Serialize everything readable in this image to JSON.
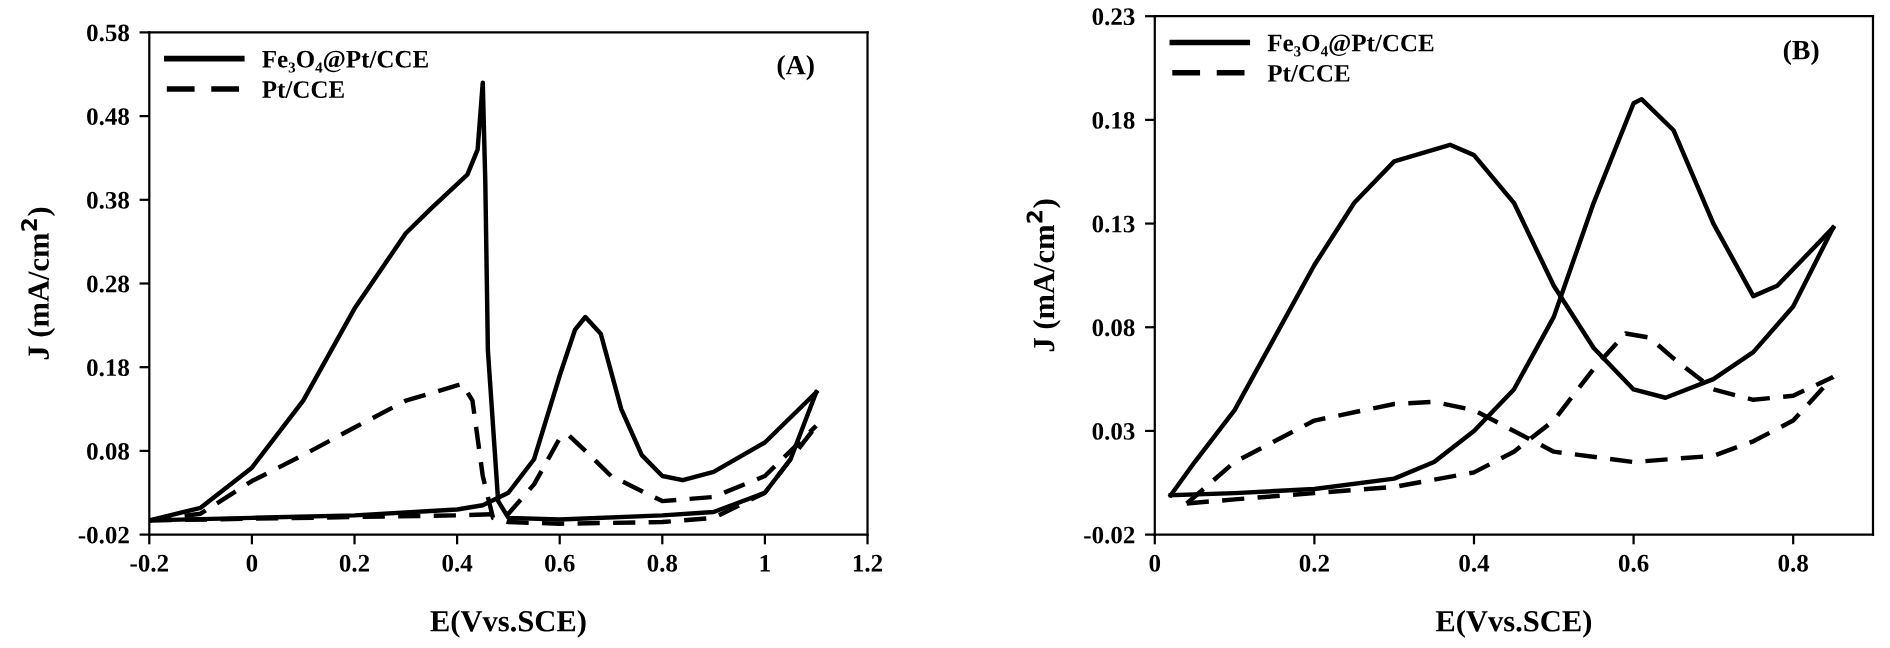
{
  "chart_data": [
    {
      "type": "line",
      "xlabel": "E(Vvs.SCE)",
      "ylabel": "J (mA/cm$^{2}$)",
      "annotations": [
        "(A)"
      ],
      "legend": "top left",
      "grid": false,
      "xlim": [
        -0.2,
        1.2
      ],
      "xticks": [
        -0.2,
        0,
        0.2,
        0.4,
        0.6,
        0.8,
        1,
        1.2
      ],
      "ylim": [
        -0.02,
        0.58
      ],
      "yticks": [
        -0.02,
        0.08,
        0.18,
        0.28,
        0.38,
        0.48,
        0.58
      ],
      "series": [
        {
          "name": "Fe₃O₄@Pt/CCE",
          "color": "#000000",
          "line_style": "solid",
          "x": [
            -0.2,
            0,
            0.2,
            0.4,
            0.45,
            0.5,
            0.55,
            0.6,
            0.63,
            0.65,
            0.68,
            0.72,
            0.76,
            0.8,
            0.84,
            0.9,
            1.0,
            1.1
          ],
          "values": [
            -0.003,
            0.0,
            0.003,
            0.01,
            0.015,
            0.03,
            0.07,
            0.17,
            0.225,
            0.24,
            0.22,
            0.13,
            0.075,
            0.05,
            0.045,
            0.055,
            0.09,
            0.15
          ]
        },
        {
          "color": "#000000",
          "line_style": "solid",
          "x": [
            -0.2,
            -0.1,
            0,
            0.1,
            0.2,
            0.3,
            0.35,
            0.42,
            0.44,
            0.45,
            0.455,
            0.46,
            0.48,
            0.5,
            0.6,
            0.8,
            0.9,
            1.0,
            1.05,
            1.1
          ],
          "values": [
            -0.003,
            0.012,
            0.06,
            0.14,
            0.25,
            0.34,
            0.37,
            0.41,
            0.44,
            0.52,
            0.4,
            0.2,
            0.02,
            0.0,
            -0.002,
            0.003,
            0.007,
            0.03,
            0.07,
            0.15
          ]
        },
        {
          "name": "Pt/CCE",
          "color": "#000000",
          "line_style": "dashed",
          "x": [
            -0.2,
            0.4,
            0.5,
            0.55,
            0.6,
            0.615,
            0.65,
            0.7,
            0.8,
            0.9,
            1.0,
            1.1
          ],
          "values": [
            -0.003,
            0.003,
            0.005,
            0.04,
            0.095,
            0.1,
            0.08,
            0.05,
            0.02,
            0.025,
            0.05,
            0.11
          ]
        },
        {
          "color": "#000000",
          "line_style": "dashed",
          "x": [
            -0.2,
            -0.1,
            0,
            0.1,
            0.2,
            0.3,
            0.41,
            0.43,
            0.45,
            0.47,
            0.5,
            0.6,
            0.8,
            0.9,
            1.0,
            1.1
          ],
          "values": [
            -0.003,
            0.005,
            0.044,
            0.075,
            0.108,
            0.14,
            0.16,
            0.14,
            0.05,
            0.0,
            -0.005,
            -0.007,
            -0.005,
            0.0,
            0.03,
            0.11
          ]
        }
      ]
    },
    {
      "type": "line",
      "xlabel": "E(Vvs.SCE)",
      "ylabel": "J (mA/cm$^{2}$)",
      "annotations": [
        "(B)"
      ],
      "legend": "top left",
      "grid": false,
      "xlim": [
        0,
        0.9
      ],
      "xticks": [
        0,
        0.2,
        0.4,
        0.6,
        0.8
      ],
      "ylim": [
        -0.02,
        0.23
      ],
      "yticks": [
        -0.02,
        0.03,
        0.08,
        0.13,
        0.18,
        0.23
      ],
      "series": [
        {
          "name": "Fe₃O₄@Pt/CCE",
          "color": "#000000",
          "line_style": "solid",
          "x": [
            0.02,
            0.1,
            0.2,
            0.3,
            0.35,
            0.4,
            0.45,
            0.5,
            0.55,
            0.6,
            0.61,
            0.65,
            0.7,
            0.75,
            0.78,
            0.85
          ],
          "values": [
            -0.001,
            0.0,
            0.002,
            0.007,
            0.015,
            0.03,
            0.05,
            0.085,
            0.14,
            0.188,
            0.19,
            0.175,
            0.13,
            0.095,
            0.1,
            0.128
          ]
        },
        {
          "color": "#000000",
          "line_style": "solid",
          "x": [
            0.02,
            0.05,
            0.1,
            0.15,
            0.2,
            0.25,
            0.3,
            0.37,
            0.4,
            0.45,
            0.5,
            0.55,
            0.6,
            0.64,
            0.7,
            0.75,
            0.8,
            0.85
          ],
          "values": [
            -0.001,
            0.015,
            0.04,
            0.075,
            0.11,
            0.14,
            0.16,
            0.168,
            0.163,
            0.14,
            0.1,
            0.07,
            0.05,
            0.046,
            0.055,
            0.068,
            0.09,
            0.128
          ]
        },
        {
          "name": "Pt/CCE",
          "color": "#000000",
          "line_style": "dashed",
          "x": [
            0.04,
            0.1,
            0.2,
            0.3,
            0.4,
            0.45,
            0.5,
            0.55,
            0.59,
            0.62,
            0.65,
            0.7,
            0.75,
            0.8,
            0.85
          ],
          "values": [
            -0.005,
            -0.003,
            0.0,
            0.003,
            0.01,
            0.02,
            0.035,
            0.06,
            0.077,
            0.075,
            0.065,
            0.05,
            0.045,
            0.047,
            0.056
          ]
        },
        {
          "color": "#000000",
          "line_style": "dashed",
          "x": [
            0.04,
            0.1,
            0.2,
            0.3,
            0.35,
            0.4,
            0.45,
            0.5,
            0.6,
            0.7,
            0.75,
            0.8,
            0.85
          ],
          "values": [
            -0.005,
            0.015,
            0.035,
            0.043,
            0.044,
            0.04,
            0.03,
            0.02,
            0.015,
            0.018,
            0.025,
            0.035,
            0.056
          ]
        }
      ]
    }
  ]
}
